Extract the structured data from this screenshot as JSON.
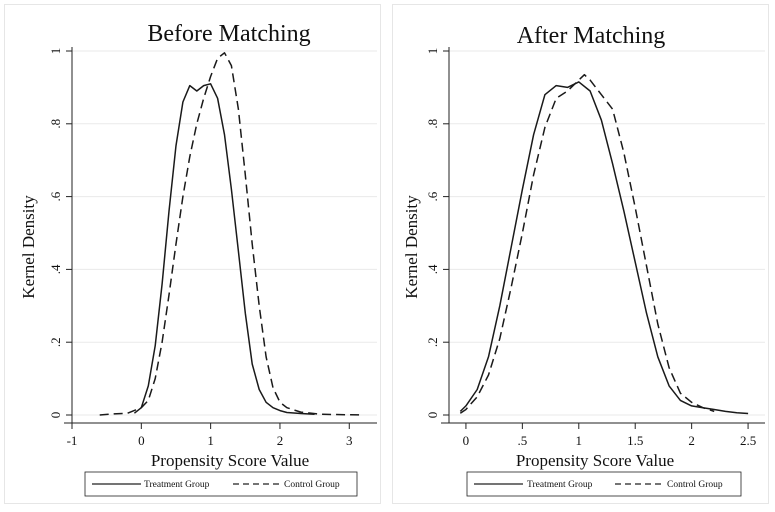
{
  "chart_data": [
    {
      "type": "line",
      "title": "Before Matching",
      "xlabel": "Propensity Score Value",
      "ylabel": "Kernel Density",
      "xlim": [
        -1,
        3.4
      ],
      "ylim": [
        0,
        1
      ],
      "x_ticks": [
        -1,
        0,
        1,
        2,
        3
      ],
      "x_tick_labels": [
        "-1",
        "0",
        "1",
        "2",
        "3"
      ],
      "y_ticks": [
        0,
        0.2,
        0.4,
        0.6,
        0.8,
        1
      ],
      "y_tick_labels": [
        "0",
        ".2",
        ".4",
        ".6",
        ".8",
        "1"
      ],
      "grid": true,
      "legend_position": "bottom",
      "series": [
        {
          "name": "Treatment Group",
          "style": "solid",
          "x": [
            -0.1,
            0,
            0.1,
            0.2,
            0.3,
            0.4,
            0.5,
            0.6,
            0.7,
            0.8,
            0.9,
            1,
            1.1,
            1.2,
            1.3,
            1.4,
            1.5,
            1.6,
            1.7,
            1.8,
            1.9,
            2,
            2.1,
            2.3,
            2.5
          ],
          "y": [
            0.005,
            0.02,
            0.08,
            0.19,
            0.36,
            0.56,
            0.74,
            0.86,
            0.905,
            0.89,
            0.905,
            0.91,
            0.87,
            0.77,
            0.62,
            0.45,
            0.28,
            0.14,
            0.07,
            0.035,
            0.02,
            0.012,
            0.007,
            0.004,
            0.002
          ]
        },
        {
          "name": "Control Group",
          "style": "dashed",
          "x": [
            -0.6,
            -0.4,
            -0.2,
            0,
            0.1,
            0.2,
            0.3,
            0.4,
            0.5,
            0.6,
            0.7,
            0.8,
            0.9,
            1,
            1.1,
            1.2,
            1.3,
            1.4,
            1.5,
            1.6,
            1.7,
            1.8,
            1.9,
            2,
            2.1,
            2.3,
            2.6,
            3.2
          ],
          "y": [
            0,
            0.003,
            0.005,
            0.02,
            0.04,
            0.1,
            0.2,
            0.33,
            0.47,
            0.6,
            0.71,
            0.8,
            0.87,
            0.93,
            0.98,
            0.995,
            0.96,
            0.84,
            0.66,
            0.47,
            0.3,
            0.16,
            0.075,
            0.035,
            0.02,
            0.008,
            0.002,
            0
          ]
        }
      ]
    },
    {
      "type": "line",
      "title": "After Matching",
      "xlabel": "Propensity Score Value",
      "ylabel": "Kernel Density",
      "xlim": [
        -0.15,
        2.65
      ],
      "ylim": [
        0,
        1
      ],
      "x_ticks": [
        0,
        0.5,
        1,
        1.5,
        2,
        2.5
      ],
      "x_tick_labels": [
        "0",
        ".5",
        "1",
        "1.5",
        "2",
        "2.5"
      ],
      "y_ticks": [
        0,
        0.2,
        0.4,
        0.6,
        0.8,
        1
      ],
      "y_tick_labels": [
        "0",
        ".2",
        ".4",
        ".6",
        ".8",
        "1"
      ],
      "grid": true,
      "legend_position": "bottom",
      "series": [
        {
          "name": "Treatment Group",
          "style": "solid",
          "x": [
            -0.05,
            0,
            0.1,
            0.2,
            0.3,
            0.4,
            0.5,
            0.6,
            0.7,
            0.8,
            0.9,
            1,
            1.1,
            1.2,
            1.3,
            1.4,
            1.5,
            1.6,
            1.7,
            1.8,
            1.9,
            2,
            2.1,
            2.2,
            2.3,
            2.4,
            2.5
          ],
          "y": [
            0.01,
            0.025,
            0.07,
            0.16,
            0.3,
            0.46,
            0.62,
            0.77,
            0.88,
            0.905,
            0.9,
            0.915,
            0.89,
            0.81,
            0.69,
            0.56,
            0.42,
            0.28,
            0.16,
            0.08,
            0.04,
            0.025,
            0.02,
            0.015,
            0.01,
            0.006,
            0.004
          ]
        },
        {
          "name": "Control Group",
          "style": "dashed",
          "x": [
            -0.05,
            0,
            0.1,
            0.2,
            0.3,
            0.4,
            0.5,
            0.6,
            0.7,
            0.8,
            0.9,
            1,
            1.05,
            1.1,
            1.2,
            1.3,
            1.4,
            1.5,
            1.6,
            1.7,
            1.8,
            1.9,
            2,
            2.1,
            2.2
          ],
          "y": [
            0.005,
            0.015,
            0.05,
            0.11,
            0.21,
            0.35,
            0.5,
            0.66,
            0.79,
            0.87,
            0.89,
            0.92,
            0.935,
            0.92,
            0.88,
            0.84,
            0.72,
            0.57,
            0.41,
            0.25,
            0.13,
            0.06,
            0.035,
            0.02,
            0.01
          ]
        }
      ]
    }
  ]
}
